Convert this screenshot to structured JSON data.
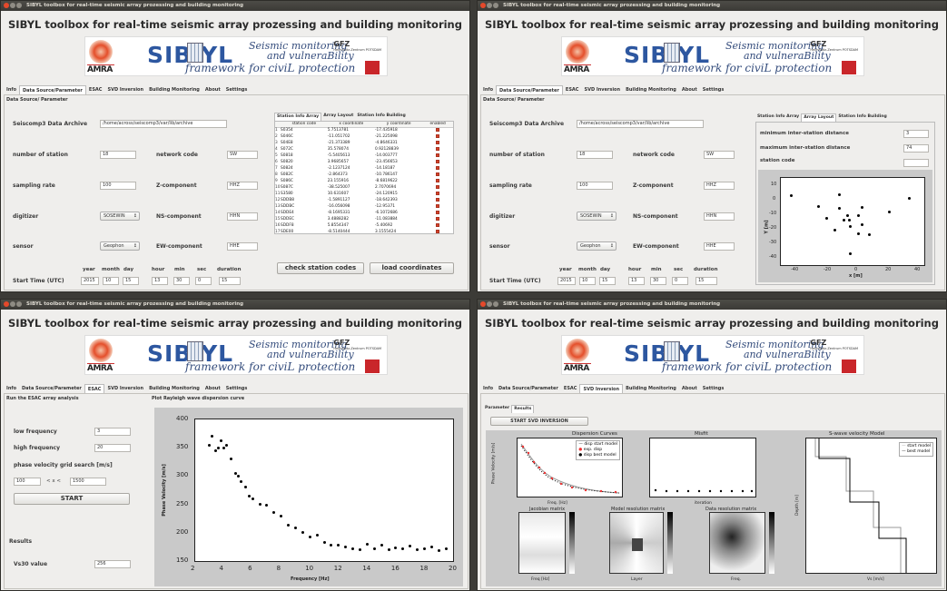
{
  "window_title": "SIBYL toolbox for real-time seismic array prozessing and building monitoring",
  "app_title": "SIBYL toolbox for real-time seismic array prozessing and building monitoring",
  "logo": {
    "amra": "AMRA",
    "sibyl": "SIB YL",
    "line1": "Seismic monitoring",
    "line2": "and vulneraBility",
    "line3": "framework for civiL protection",
    "gfz": "GFZ",
    "gfz_sub": "Helmholtz-Zentrum POTSDAM"
  },
  "main_tabs": [
    "Info",
    "Data Source/Parameter",
    "ESAC",
    "SVD Inversion",
    "Building Monitoring",
    "About",
    "Settings"
  ],
  "colors": {
    "accent_red": "#d6442a",
    "titlebar": "#3b3a36",
    "plot_bg": "#c9c9c9"
  },
  "datasource": {
    "section": "Data Source/ Parameter",
    "section_alt": "Data Source/ Parameter",
    "archive_label": "Seiscomp3 Data Archive",
    "archive_value": "/home/across/seiscomp3/var/lib/archive",
    "num_station_label": "number of station",
    "num_station_value": "18",
    "network_label": "network code",
    "network_value": "SW",
    "sampling_label": "sampling rate",
    "sampling_value": "100",
    "zcomp_label": "Z-component",
    "zcomp_value": "HHZ",
    "digitizer_label": "digitizer",
    "digitizer_value": "SOSEWIN",
    "ns_label": "NS-component",
    "ns_value": "HHN",
    "sensor_label": "sensor",
    "sensor_value": "Geophon",
    "ew_label": "EW-component",
    "ew_value": "HHE",
    "time_headers": [
      "year",
      "month",
      "day",
      "hour",
      "min",
      "sec",
      "duration"
    ],
    "start_label": "Start Time (UTC)",
    "time_values": [
      "2015",
      "10",
      "15",
      "13",
      "30",
      "0",
      "15"
    ],
    "station_tabs": [
      "Station Info Array",
      "Array Layout",
      "Station Info Building"
    ],
    "table_headers": [
      "station code",
      "x coordinate",
      "y coordinate",
      "enabled"
    ],
    "stations": [
      [
        "1",
        "S0354",
        "5.7513781",
        "-17.435918"
      ],
      [
        "2",
        "S046C",
        "-11.051702",
        "-21.225098"
      ],
      [
        "3",
        "S04E8",
        "-21.373389",
        "-4.8646331"
      ],
      [
        "4",
        "S072C",
        "35.578074",
        "0.92128839"
      ],
      [
        "5",
        "S0818",
        "-5.5405613",
        "-14.003777"
      ],
      [
        "6",
        "S0820",
        "3.9685657",
        "-23.456653"
      ],
      [
        "7",
        "S0824",
        "-2.1237124",
        "-14.18187"
      ],
      [
        "8",
        "S082C",
        "-2.864373",
        "-10.786147"
      ],
      [
        "9",
        "S086C",
        "23.155916",
        "-8.6819622"
      ],
      [
        "10",
        "S087C",
        "-38.525007",
        "2.7070694"
      ],
      [
        "11",
        "S3580",
        "10.631607",
        "-24.120915"
      ],
      [
        "12",
        "SDDB8",
        "-1.5891127",
        "-18.642393"
      ],
      [
        "13",
        "SDDBC",
        "-16.056098",
        "-12.95371"
      ],
      [
        "14",
        "SDDE4",
        "-8.1695331",
        "-6.1072686"
      ],
      [
        "15",
        "SDDEC",
        "3.4888282",
        "-11.083884"
      ],
      [
        "16",
        "SDDF8",
        "5.8554347",
        "-5.40692"
      ],
      [
        "17",
        "SDE00",
        "-8.5140444",
        "3.1555424"
      ],
      [
        "18",
        "SDE04",
        "-1.5742026",
        "-37.086605"
      ],
      [
        "19",
        "",
        "",
        ""
      ]
    ],
    "check_btn": "check station codes",
    "load_btn": "load coordinates",
    "min_dist_label": "minimum inter-station distance",
    "min_dist_value": "3",
    "max_dist_label": "maximum inter-station distance",
    "max_dist_value": "74",
    "station_code_label": "station  code",
    "layout_xlabel": "x [m]",
    "layout_ylabel": "Y [m]",
    "layout_xticks": [
      "-40",
      "-20",
      "0",
      "20",
      "40"
    ],
    "layout_yticks": [
      "10",
      "0",
      "-10",
      "-20",
      "-30",
      "-40"
    ]
  },
  "esac": {
    "run_label": "Run the ESAC array analysis",
    "plot_label": "Plot Rayleigh wave dispersion curve",
    "low_label": "low frequency",
    "low_value": "3",
    "high_label": "high frequency",
    "high_value": "20",
    "grid_label": "phase velocity grid search [m/s]",
    "grid_min": "100",
    "grid_mid": "< x <",
    "grid_max": "1500",
    "start_btn": "START",
    "results_label": "Results",
    "vs30_label": "Vs30 value",
    "vs30_value": "256"
  },
  "svd": {
    "sub_tabs": [
      "Parameter",
      "Results"
    ],
    "start_btn": "START SVD INVERSION",
    "disp_title": "Dispersion Curves",
    "legend": [
      "disp start model",
      "exp. disp",
      "disp best model"
    ],
    "disp_xlabel": "Freq. [Hz]",
    "disp_ylabel": "Phase Velocity [m/s]",
    "misfit_title": "Misfit",
    "misfit_xlabel": "iteration",
    "vs_title": "S-wave velocity Model",
    "vs_legend": [
      "start model",
      "best model"
    ],
    "vs_xlabel": "Vs [m/s]",
    "vs_ylabel": "Depth [m]",
    "jac_title": "Jacobian matrix",
    "jac_xlabel": "Freq [Hz]",
    "mrm_title": "Model resolution matrix",
    "mrm_xlabel": "Layer",
    "drm_title": "Data resolution matrix",
    "drm_xlabel": "Freq."
  },
  "chart_data": [
    {
      "type": "scatter",
      "title": "",
      "xlabel": "Frequency [Hz]",
      "ylabel": "Phase Velocity [m/s]",
      "xlim": [
        2,
        20
      ],
      "ylim": [
        150,
        400
      ],
      "xticks": [
        "2",
        "4",
        "6",
        "8",
        "10",
        "12",
        "14",
        "16",
        "18",
        "20"
      ],
      "yticks": [
        "400",
        "350",
        "300",
        "250",
        "200",
        "150"
      ],
      "x": [
        3.0,
        3.2,
        3.4,
        3.6,
        3.8,
        4.0,
        4.2,
        4.5,
        4.8,
        5.0,
        5.2,
        5.5,
        5.8,
        6.0,
        6.5,
        7.0,
        7.5,
        8.0,
        8.5,
        9.0,
        9.5,
        10.0,
        10.5,
        11.0,
        11.5,
        12.0,
        12.5,
        13.0,
        13.5,
        14.0,
        14.5,
        15.0,
        15.5,
        16.0,
        16.5,
        17.0,
        17.5,
        18.0,
        18.5,
        19.0,
        19.5
      ],
      "y": [
        355,
        370,
        345,
        350,
        362,
        349,
        355,
        330,
        305,
        300,
        290,
        280,
        265,
        260,
        250,
        248,
        235,
        230,
        213,
        208,
        200,
        192,
        195,
        183,
        178,
        178,
        175,
        172,
        170,
        180,
        172,
        178,
        170,
        174,
        172,
        176,
        170,
        172,
        175,
        168,
        172
      ]
    },
    {
      "type": "scatter",
      "title": "",
      "xlabel": "x [m]",
      "ylabel": "Y [m]",
      "xlim": [
        -45,
        45
      ],
      "ylim": [
        -45,
        15
      ],
      "x": [
        5.75,
        -11.05,
        -21.37,
        35.58,
        -5.54,
        3.97,
        -2.12,
        -2.86,
        23.16,
        -38.53,
        10.63,
        -1.59,
        -16.06,
        -8.17,
        3.49,
        5.86,
        -8.51,
        -1.57
      ],
      "y": [
        -17.44,
        -21.23,
        -4.86,
        0.92,
        -14.0,
        -23.46,
        -14.18,
        -10.79,
        -8.68,
        2.71,
        -24.12,
        -18.64,
        -12.95,
        -6.11,
        -11.08,
        -5.41,
        3.16,
        -37.09
      ]
    }
  ]
}
